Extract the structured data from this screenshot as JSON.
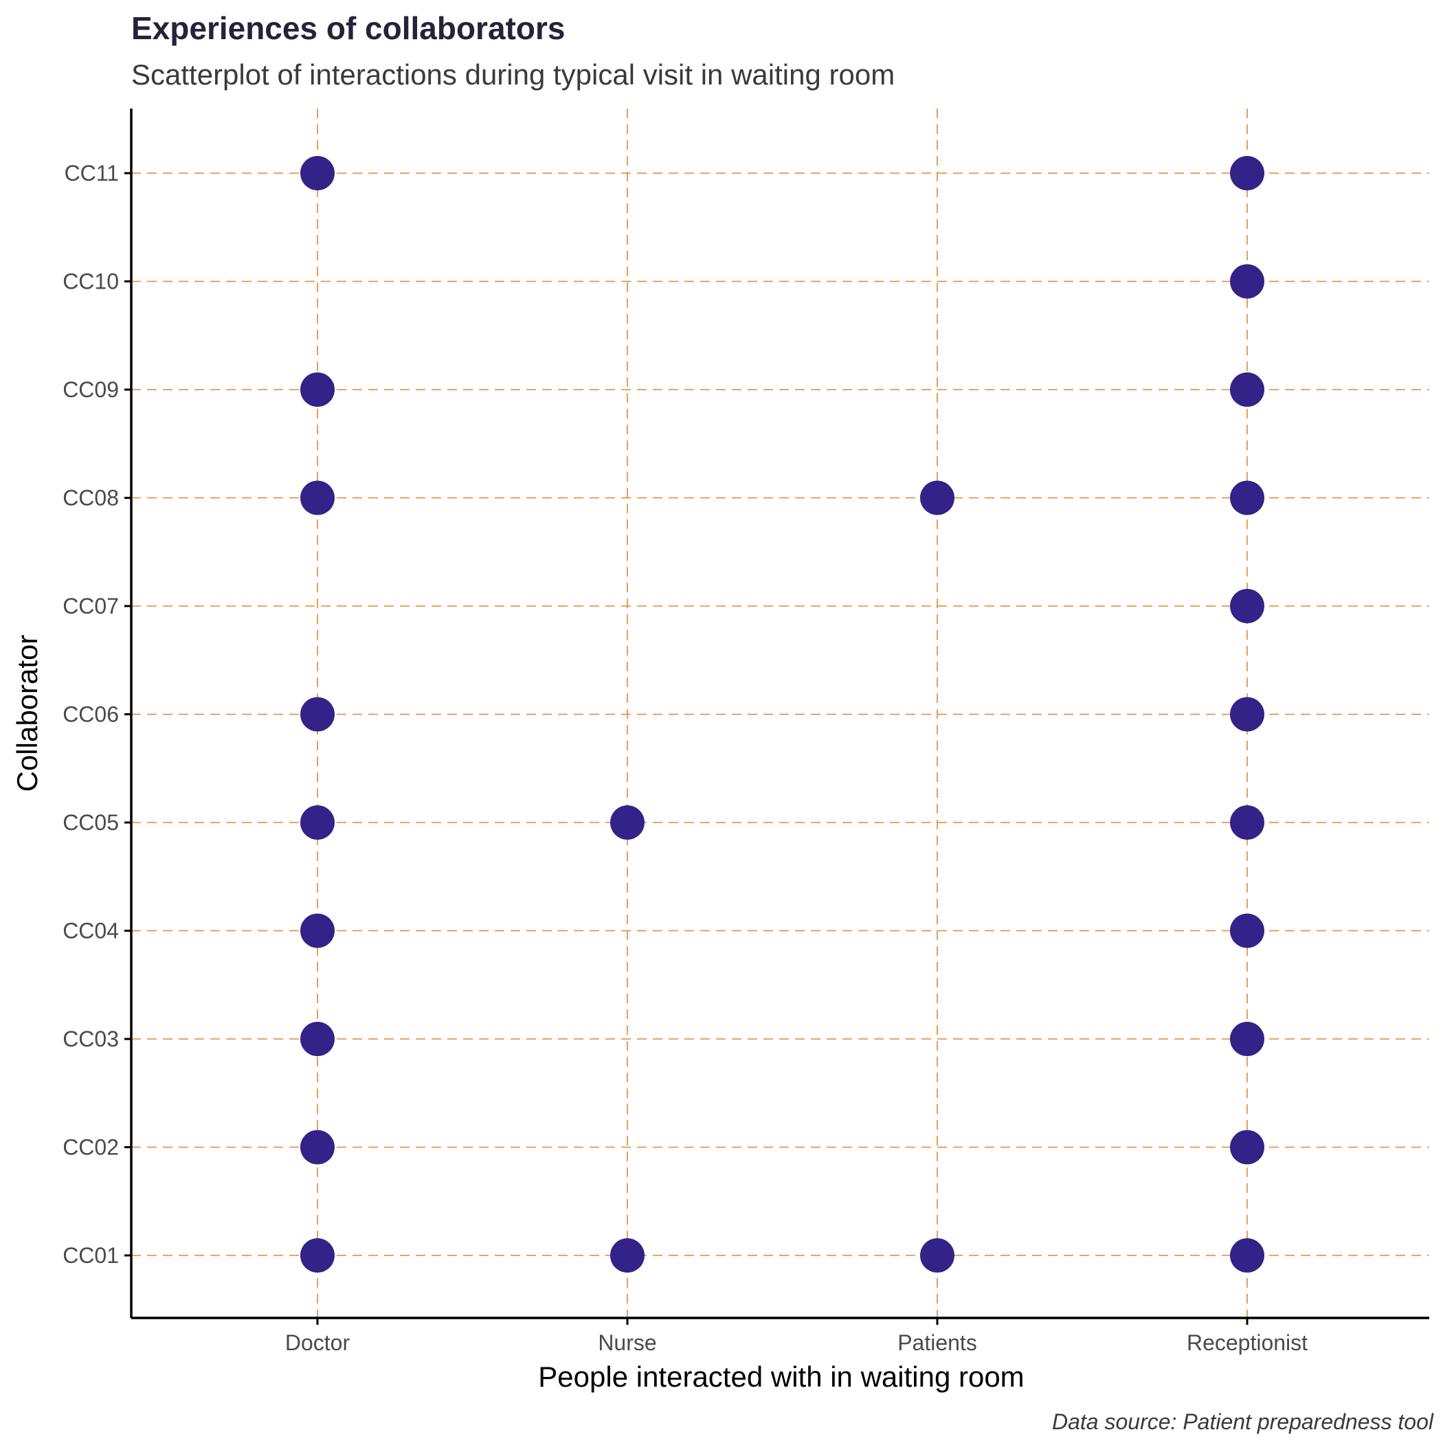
{
  "chart_data": {
    "type": "scatter",
    "title": "Experiences of collaborators",
    "subtitle": "Scatterplot of interactions during typical visit in waiting room",
    "xlabel": "People interacted with in waiting room",
    "ylabel": "Collaborator",
    "caption": "Data source: Patient preparedness tool",
    "x_categories": [
      "Doctor",
      "Nurse",
      "Patients",
      "Receptionist"
    ],
    "y_categories": [
      "CC01",
      "CC02",
      "CC03",
      "CC04",
      "CC05",
      "CC06",
      "CC07",
      "CC08",
      "CC09",
      "CC10",
      "CC11"
    ],
    "points": [
      {
        "x": "Doctor",
        "y": "CC01"
      },
      {
        "x": "Doctor",
        "y": "CC02"
      },
      {
        "x": "Doctor",
        "y": "CC03"
      },
      {
        "x": "Doctor",
        "y": "CC04"
      },
      {
        "x": "Doctor",
        "y": "CC05"
      },
      {
        "x": "Doctor",
        "y": "CC06"
      },
      {
        "x": "Doctor",
        "y": "CC08"
      },
      {
        "x": "Doctor",
        "y": "CC09"
      },
      {
        "x": "Doctor",
        "y": "CC11"
      },
      {
        "x": "Nurse",
        "y": "CC01"
      },
      {
        "x": "Nurse",
        "y": "CC05"
      },
      {
        "x": "Patients",
        "y": "CC01"
      },
      {
        "x": "Patients",
        "y": "CC08"
      },
      {
        "x": "Receptionist",
        "y": "CC01"
      },
      {
        "x": "Receptionist",
        "y": "CC02"
      },
      {
        "x": "Receptionist",
        "y": "CC03"
      },
      {
        "x": "Receptionist",
        "y": "CC04"
      },
      {
        "x": "Receptionist",
        "y": "CC05"
      },
      {
        "x": "Receptionist",
        "y": "CC06"
      },
      {
        "x": "Receptionist",
        "y": "CC07"
      },
      {
        "x": "Receptionist",
        "y": "CC08"
      },
      {
        "x": "Receptionist",
        "y": "CC09"
      },
      {
        "x": "Receptionist",
        "y": "CC10"
      },
      {
        "x": "Receptionist",
        "y": "CC11"
      }
    ],
    "grid": true,
    "legend": "none",
    "colors": {
      "point": "#332288",
      "grid": "#E5852A",
      "axis": "#000000"
    }
  }
}
